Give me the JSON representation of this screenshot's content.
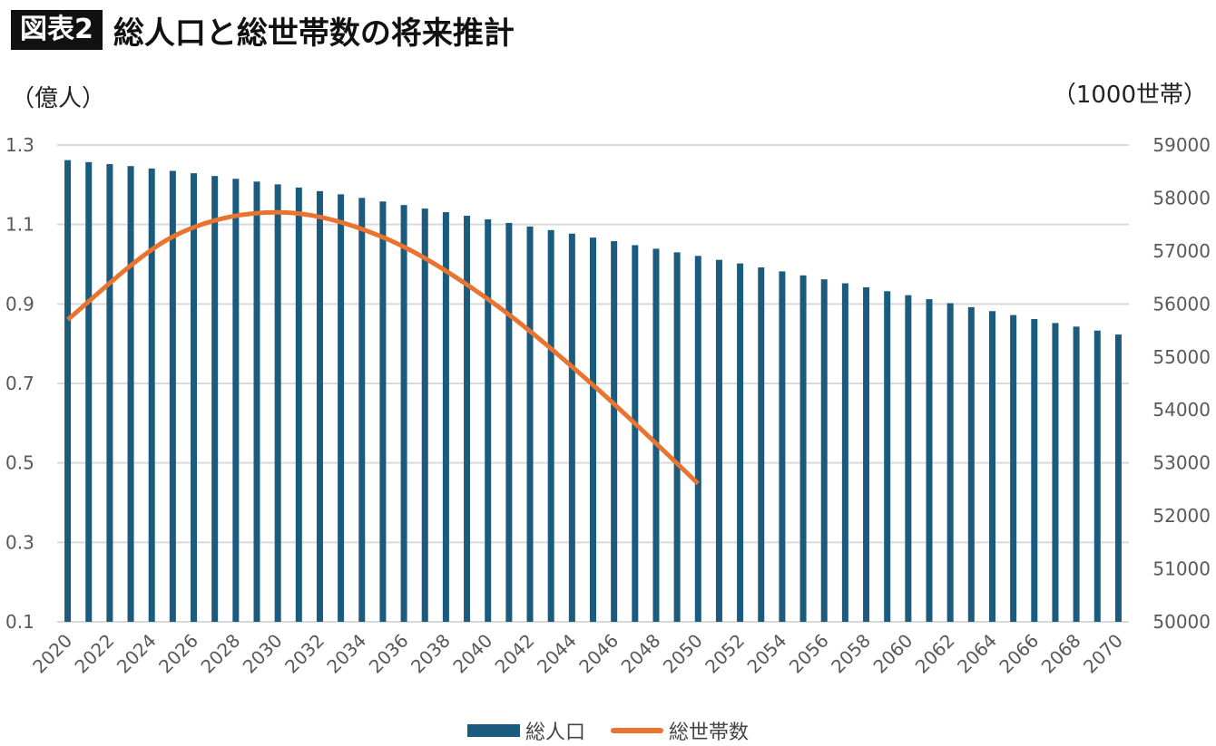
{
  "header": {
    "badge": "図表2",
    "title": "総人口と総世帯数の将来推計"
  },
  "units": {
    "left": "（億人）",
    "right": "（1000世帯）"
  },
  "colors": {
    "bar": "#1a5b7e",
    "line": "#e8742f",
    "grid": "#d9d9d9",
    "tick_text": "#595959"
  },
  "chart_data": {
    "type": "bar",
    "categories": [
      "2020",
      "2021",
      "2022",
      "2023",
      "2024",
      "2025",
      "2026",
      "2027",
      "2028",
      "2029",
      "2030",
      "2031",
      "2032",
      "2033",
      "2034",
      "2035",
      "2036",
      "2037",
      "2038",
      "2039",
      "2040",
      "2041",
      "2042",
      "2043",
      "2044",
      "2045",
      "2046",
      "2047",
      "2048",
      "2049",
      "2050",
      "2051",
      "2052",
      "2053",
      "2054",
      "2055",
      "2056",
      "2057",
      "2058",
      "2059",
      "2060",
      "2061",
      "2062",
      "2063",
      "2064",
      "2065",
      "2066",
      "2067",
      "2068",
      "2069",
      "2070"
    ],
    "x_tick_labels": [
      "2020",
      "2022",
      "2024",
      "2026",
      "2028",
      "2030",
      "2032",
      "2034",
      "2036",
      "2038",
      "2040",
      "2042",
      "2044",
      "2046",
      "2048",
      "2050",
      "2052",
      "2054",
      "2056",
      "2058",
      "2060",
      "2062",
      "2064",
      "2066",
      "2068",
      "2070"
    ],
    "series": [
      {
        "name": "総人口",
        "type": "bar",
        "axis": "left",
        "values": [
          1.262,
          1.257,
          1.252,
          1.247,
          1.241,
          1.235,
          1.229,
          1.222,
          1.215,
          1.208,
          1.201,
          1.193,
          1.184,
          1.176,
          1.167,
          1.158,
          1.149,
          1.14,
          1.131,
          1.122,
          1.113,
          1.104,
          1.095,
          1.086,
          1.077,
          1.067,
          1.058,
          1.048,
          1.039,
          1.03,
          1.021,
          1.011,
          1.002,
          0.992,
          0.982,
          0.972,
          0.962,
          0.952,
          0.942,
          0.932,
          0.922,
          0.912,
          0.902,
          0.892,
          0.882,
          0.872,
          0.862,
          0.852,
          0.843,
          0.833,
          0.823
        ]
      },
      {
        "name": "総世帯数",
        "type": "line",
        "axis": "right",
        "x": [
          "2020",
          "2025",
          "2030",
          "2035",
          "2040",
          "2045",
          "2050"
        ],
        "values": [
          55705,
          57270,
          57730,
          57260,
          56090,
          54470,
          52610
        ]
      }
    ],
    "ylim_left": [
      0.1,
      1.3
    ],
    "yticks_left": [
      "1.3",
      "1.1",
      "0.9",
      "0.7",
      "0.5",
      "0.3",
      "0.1"
    ],
    "ylim_right": [
      50000,
      59000
    ],
    "yticks_right": [
      "59000",
      "58000",
      "57000",
      "56000",
      "55000",
      "54000",
      "53000",
      "52000",
      "51000",
      "50000"
    ],
    "grid": true,
    "legend_position": "bottom"
  }
}
